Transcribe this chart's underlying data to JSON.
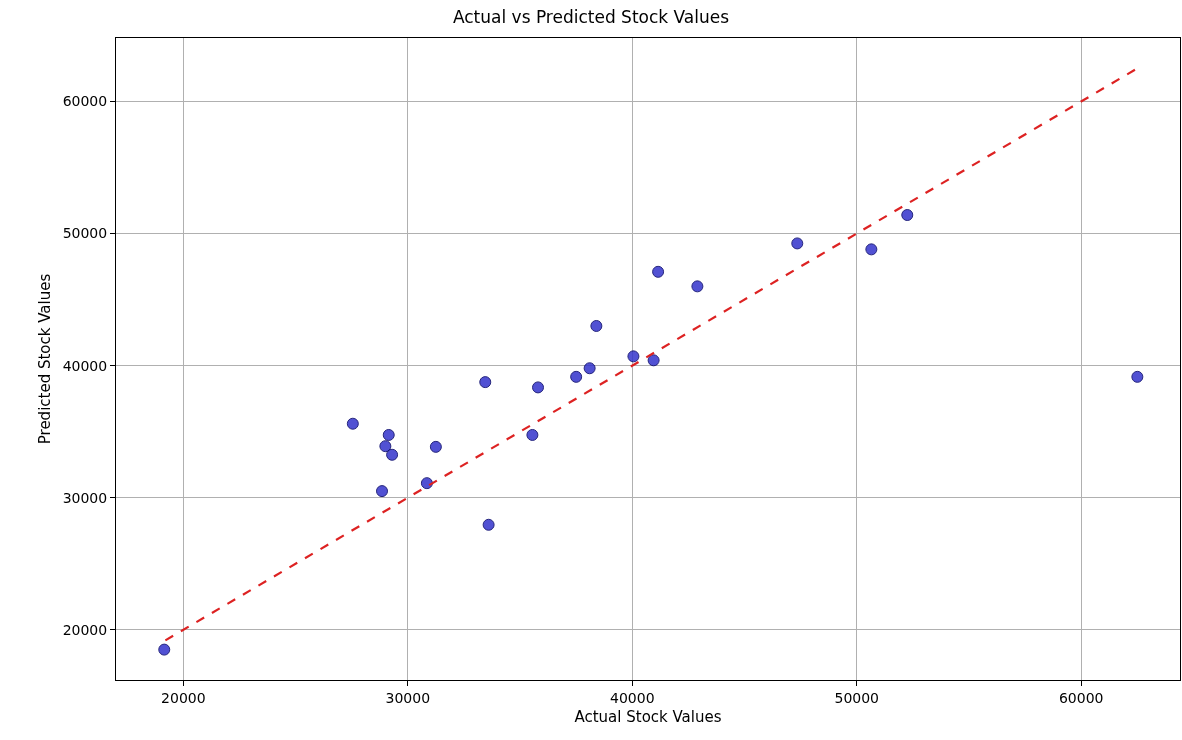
{
  "chart_data": {
    "type": "scatter",
    "title": "Actual vs Predicted Stock Values",
    "xlabel": "Actual Stock Values",
    "ylabel": "Predicted Stock Values",
    "xlim": [
      17000,
      64400
    ],
    "ylim": [
      16200,
      64800
    ],
    "xticks": [
      20000,
      30000,
      40000,
      50000,
      60000
    ],
    "yticks": [
      20000,
      30000,
      40000,
      50000,
      60000
    ],
    "grid": true,
    "marker": "circle",
    "series": [
      {
        "color": "#3333cc",
        "x": [
          19150,
          27550,
          28850,
          29000,
          29150,
          29300,
          30850,
          31250,
          33450,
          33600,
          35550,
          35800,
          37500,
          38100,
          38400,
          40050,
          40950,
          41150,
          42900,
          47350,
          50650,
          52250,
          62500
        ],
        "values": [
          18500,
          35600,
          30500,
          33900,
          34750,
          33250,
          31100,
          33850,
          38750,
          27950,
          34750,
          38350,
          39150,
          39800,
          43000,
          40700,
          40400,
          47100,
          46000,
          49250,
          48800,
          51400,
          39150
        ]
      },
      {
        "type": "line",
        "color": "#dd2222",
        "line_style": "dashed",
        "marker": "none",
        "x": [
          19200,
          62500
        ],
        "values": [
          19200,
          62500
        ]
      }
    ]
  }
}
